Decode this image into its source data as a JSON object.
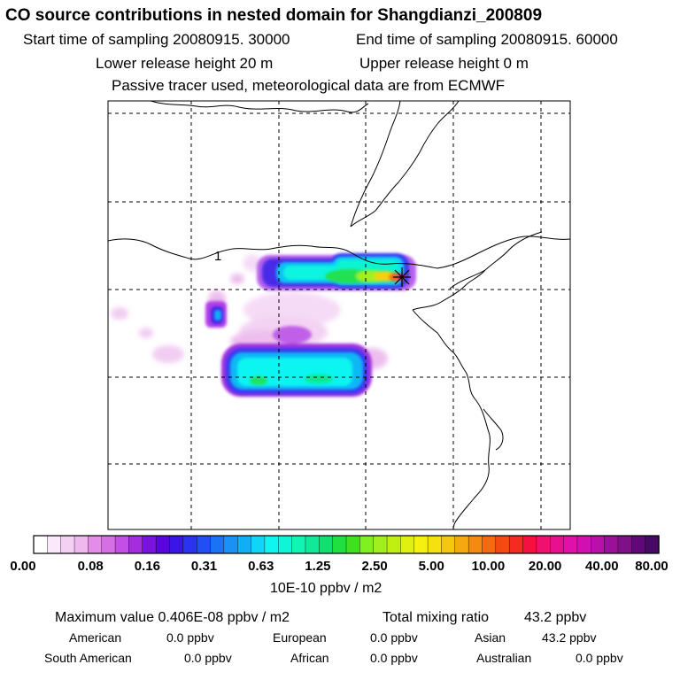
{
  "header": {
    "title": "CO  source contributions in nested domain for Shangdianzi_200809",
    "start": "Start time of sampling 20080915. 30000",
    "end": "End time of sampling 20080915. 60000",
    "lower": "Lower release height   20 m",
    "upper": "Upper release height    0 m",
    "tracer": "Passive tracer used, meteorological data are from ECMWF"
  },
  "map": {
    "contour_label": "1",
    "receptor_marker": "Shangdianzi"
  },
  "colorbar": {
    "tick_labels": [
      "0.00",
      "0.08",
      "0.16",
      "0.31",
      "0.63",
      "1.25",
      "2.50",
      "5.00",
      "10.00",
      "20.00",
      "40.00",
      "80.00"
    ],
    "units": "10E-10 ppbv / m2",
    "colors": [
      "#ffffff",
      "#fbe8fb",
      "#f5d0f5",
      "#efb8ef",
      "#e48de8",
      "#d66ee6",
      "#c44fe6",
      "#a52de0",
      "#7a12e0",
      "#5a05e0",
      "#3b14e8",
      "#2a33f0",
      "#2050f5",
      "#1a72f5",
      "#1a92f5",
      "#10aef5",
      "#10d5f5",
      "#10f5f0",
      "#10f5d8",
      "#10f5b0",
      "#10e89a",
      "#10e070",
      "#20e040",
      "#40e020",
      "#80f020",
      "#a0f020",
      "#c0f010",
      "#e0f010",
      "#f5f010",
      "#f5e010",
      "#f5c810",
      "#f5a810",
      "#f58a10",
      "#f56a10",
      "#f54a10",
      "#f52a20",
      "#f51040",
      "#f01070",
      "#e81090",
      "#e010a8",
      "#d010b0",
      "#b810a8",
      "#9a1098",
      "#801088",
      "#600878",
      "#480868"
    ]
  },
  "stats": {
    "max_label": "Maximum value  0.406E-08 ppbv / m2",
    "total_label": "Total mixing ratio",
    "total_value": "43.2 ppbv",
    "regions": [
      {
        "name": "American",
        "value": "0.0 ppbv"
      },
      {
        "name": "European",
        "value": "0.0 ppbv"
      },
      {
        "name": "Asian",
        "value": "43.2 ppbv"
      },
      {
        "name": "South American",
        "value": "0.0 ppbv"
      },
      {
        "name": "African",
        "value": "0.0 ppbv"
      },
      {
        "name": "Australian",
        "value": "0.0 ppbv"
      }
    ]
  }
}
